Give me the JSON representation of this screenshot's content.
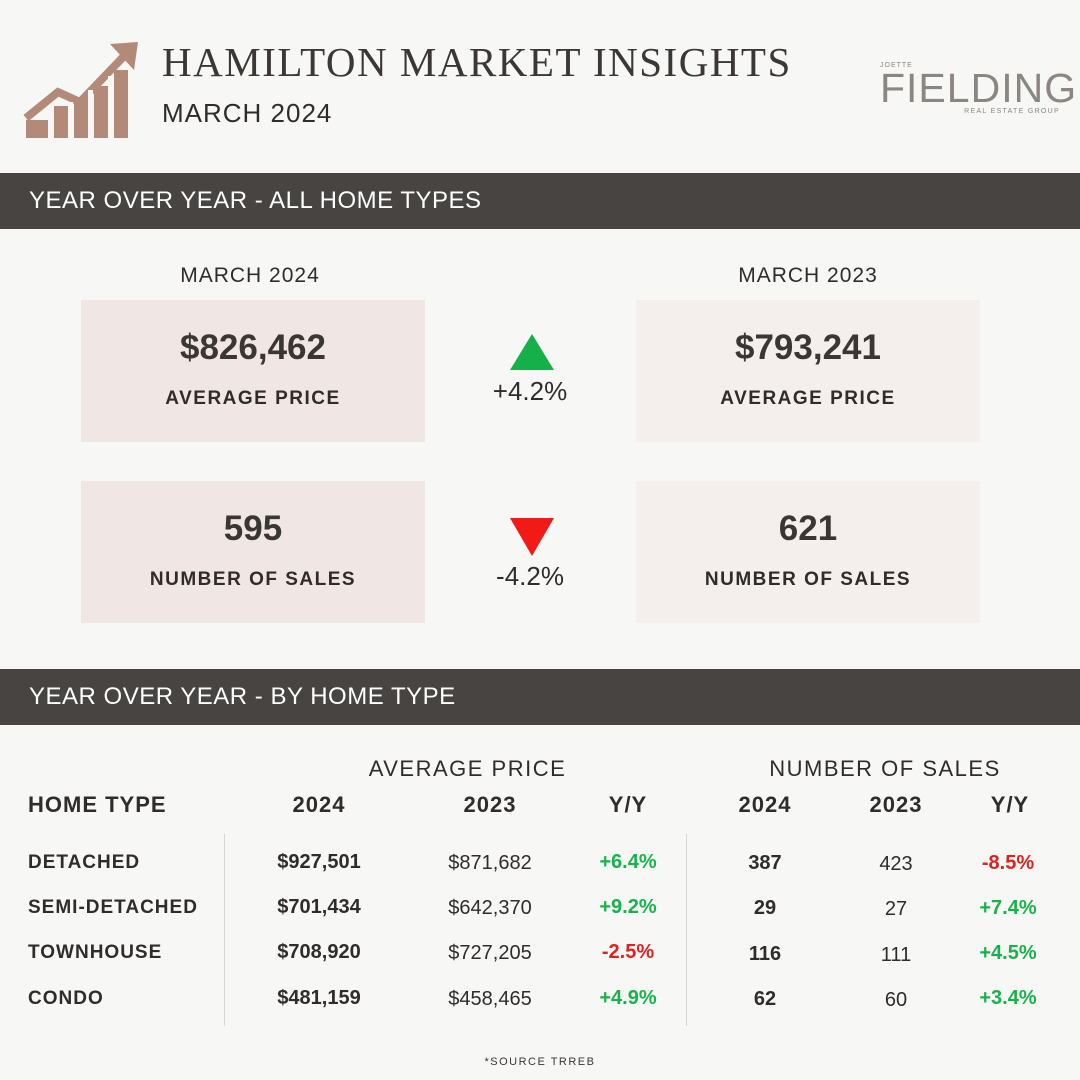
{
  "header": {
    "title": "HAMILTON MARKET INSIGHTS",
    "subtitle": "MARCH 2024",
    "brand_small": "JOETTE",
    "brand_name": "FIELDING",
    "brand_tagline": "REAL ESTATE GROUP",
    "logo_icon": "bar-chart-arrow-icon",
    "accent_color": "#b28a77"
  },
  "section1": {
    "title": "YEAR OVER YEAR - ALL HOME TYPES",
    "current_label": "MARCH 2024",
    "previous_label": "MARCH 2023",
    "avg_price": {
      "current": "$826,462",
      "previous": "$793,241",
      "label": "AVERAGE PRICE",
      "change": "+4.2%",
      "direction": "up"
    },
    "sales": {
      "current": "595",
      "previous": "621",
      "label": "NUMBER OF SALES",
      "change": "-4.2%",
      "direction": "down"
    }
  },
  "section2": {
    "title": "YEAR OVER YEAR - BY HOME TYPE",
    "group_avg_price": "AVERAGE PRICE",
    "group_sales": "NUMBER OF SALES",
    "headers": [
      "HOME TYPE",
      "2024",
      "2023",
      "Y/Y",
      "2024",
      "2023",
      "Y/Y"
    ],
    "rows": [
      {
        "type": "DETACHED",
        "p24": "$927,501",
        "p23": "$871,682",
        "pyy": "+6.4%",
        "s24": "387",
        "s23": "423",
        "syy": "-8.5%"
      },
      {
        "type": "SEMI-DETACHED",
        "p24": "$701,434",
        "p23": "$642,370",
        "pyy": "+9.2%",
        "s24": "29",
        "s23": "27",
        "syy": "+7.4%"
      },
      {
        "type": "TOWNHOUSE",
        "p24": "$708,920",
        "p23": "$727,205",
        "pyy": "-2.5%",
        "s24": "116",
        "s23": "111",
        "syy": "+4.5%"
      },
      {
        "type": "CONDO",
        "p24": "$481,159",
        "p23": "$458,465",
        "pyy": "+4.9%",
        "s24": "62",
        "s23": "60",
        "syy": "+3.4%"
      }
    ]
  },
  "footer": {
    "source": "*SOURCE TRREB"
  },
  "colors": {
    "bar_bg": "#474441",
    "positive": "#17b34a",
    "negative": "#e0221f",
    "card_current": "#f0e6e3",
    "card_previous": "#f4efec"
  }
}
